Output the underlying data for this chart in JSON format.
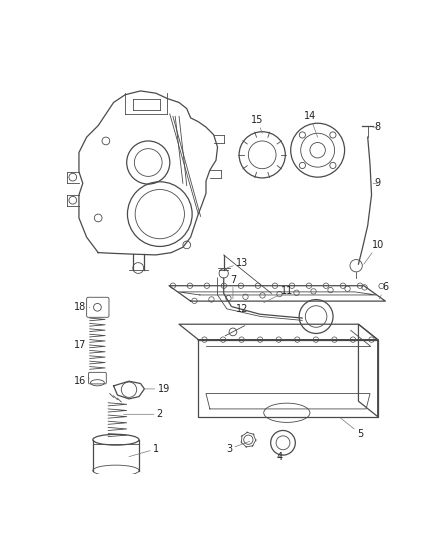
{
  "bg_color": "#ffffff",
  "line_color": "#4a4a4a",
  "label_color": "#222222",
  "label_fontsize": 7.0,
  "fig_width": 4.38,
  "fig_height": 5.33,
  "dpi": 100
}
